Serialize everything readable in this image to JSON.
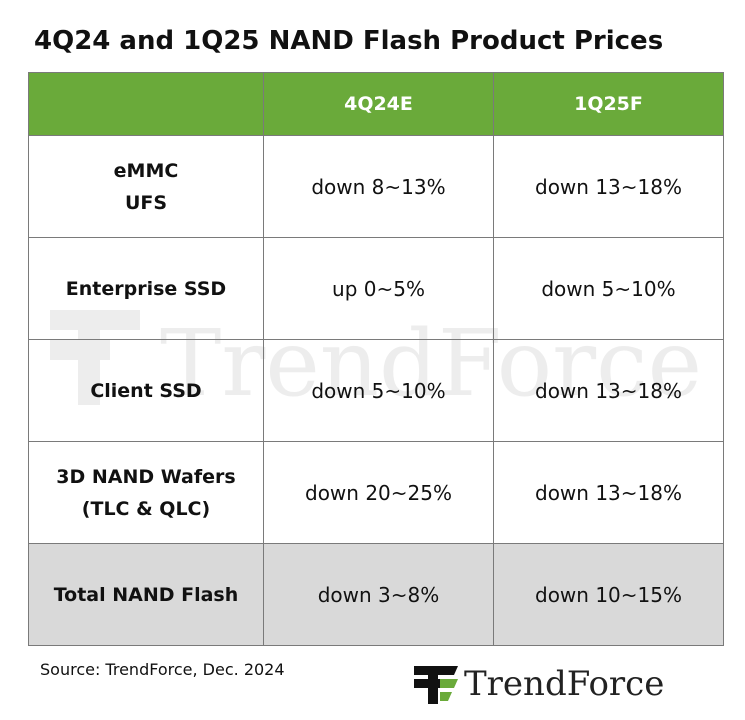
{
  "title": "4Q24 and 1Q25 NAND Flash Product Prices",
  "table": {
    "headers": [
      "",
      "4Q24E",
      "1Q25F"
    ],
    "rows": [
      {
        "label": [
          "eMMC",
          "UFS"
        ],
        "q4": "down 8~13%",
        "q1": "down 13~18%",
        "highlight": false
      },
      {
        "label": [
          "Enterprise SSD"
        ],
        "q4": "up 0~5%",
        "q1": "down 5~10%",
        "highlight": false
      },
      {
        "label": [
          "Client SSD"
        ],
        "q4": "down 5~10%",
        "q1": "down 13~18%",
        "highlight": false
      },
      {
        "label": [
          "3D NAND Wafers",
          "(TLC & QLC)"
        ],
        "q4": "down 20~25%",
        "q1": "down 13~18%",
        "highlight": false
      },
      {
        "label": [
          "Total NAND Flash"
        ],
        "q4": "down 3~8%",
        "q1": "down 10~15%",
        "highlight": true
      }
    ]
  },
  "source": "Source: TrendForce, Dec. 2024",
  "logo": {
    "text": "TrendForce",
    "icon": "trendforce-logo-icon"
  },
  "watermark": {
    "text": "TrendForce",
    "icon": "trendforce-watermark-icon"
  },
  "colors": {
    "header_bg": "#6aaa3a",
    "header_text": "#ffffff",
    "total_row_bg": "#d9d9d9",
    "border": "#7a7a7a",
    "logo_green": "#6aaa3a"
  }
}
